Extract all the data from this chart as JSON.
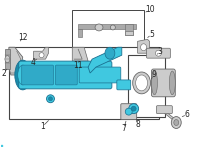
{
  "bg_color": "#ffffff",
  "part_color_main": "#40c8e0",
  "part_color_mid": "#30aac8",
  "part_color_dark": "#1a8aaa",
  "part_color_outline": "#1a7090",
  "gray_light": "#cccccc",
  "gray_mid": "#aaaaaa",
  "gray_dark": "#666666",
  "line_color": "#444444",
  "text_color": "#222222",
  "label_font_size": 5.5,
  "fig_width": 2.0,
  "fig_height": 1.47,
  "dpi": 100
}
